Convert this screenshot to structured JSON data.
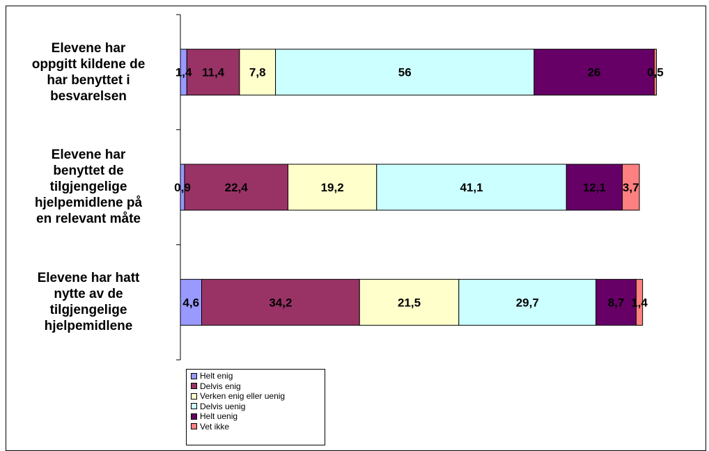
{
  "chart_data": {
    "type": "bar",
    "orientation": "horizontal",
    "stacked": true,
    "categories": [
      "Elevene har oppgitt kildene de har benyttet i besvarelsen",
      "Elevene har benyttet de tilgjengelige hjelpemidlene på en relevant måte",
      "Elevene har hatt nytte av de tilgjengelige hjelpemidlene"
    ],
    "category_lines": [
      [
        "Elevene har",
        "oppgitt kildene de",
        "har benyttet i",
        "besvarelsen"
      ],
      [
        "Elevene har",
        "benyttet de",
        "tilgjengelige",
        "hjelpemidlene på",
        "en relevant måte"
      ],
      [
        "Elevene har hatt",
        "nytte av de",
        "tilgjengelige",
        "hjelpemidlene"
      ]
    ],
    "series": [
      {
        "name": "Helt enig",
        "color": "#9999ff",
        "values": [
          1.4,
          0.9,
          4.6
        ],
        "labels": [
          "1,4",
          "0,9",
          "4,6"
        ]
      },
      {
        "name": "Delvis enig",
        "color": "#993366",
        "values": [
          11.4,
          22.4,
          34.2
        ],
        "labels": [
          "11,4",
          "22,4",
          "34,2"
        ]
      },
      {
        "name": "Verken enig eller uenig",
        "color": "#ffffcc",
        "values": [
          7.8,
          19.2,
          21.5
        ],
        "labels": [
          "7,8",
          "19,2",
          "21,5"
        ]
      },
      {
        "name": "Delvis uenig",
        "color": "#ccffff",
        "values": [
          56,
          41.1,
          29.7
        ],
        "labels": [
          "56",
          "41,1",
          "29,7"
        ]
      },
      {
        "name": "Helt uenig",
        "color": "#660066",
        "values": [
          26,
          12.1,
          8.7
        ],
        "labels": [
          "26",
          "12,1",
          "8,7"
        ]
      },
      {
        "name": "Vet ikke",
        "color": "#ff8080",
        "values": [
          0.5,
          3.7,
          1.4
        ],
        "labels": [
          "0,5",
          "3,7",
          "1,4"
        ]
      }
    ],
    "xlim": [
      0,
      100
    ],
    "grid": false,
    "legend_position": "bottom-left"
  }
}
